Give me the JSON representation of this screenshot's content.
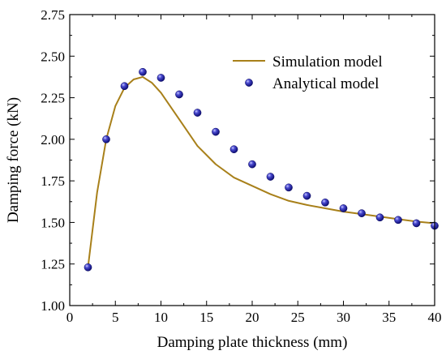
{
  "chart_data": {
    "type": "line",
    "title": "",
    "xlabel": "Damping plate thickness (mm)",
    "ylabel": "Damping force (kN)",
    "xlim": [
      0,
      40
    ],
    "ylim": [
      1.0,
      2.75
    ],
    "x_ticks": [
      0,
      5,
      10,
      15,
      20,
      25,
      30,
      35,
      40
    ],
    "y_ticks": [
      1.0,
      1.25,
      1.5,
      1.75,
      2.0,
      2.25,
      2.5,
      2.75
    ],
    "x_tick_labels": [
      "0",
      "5",
      "10",
      "15",
      "20",
      "25",
      "30",
      "35",
      "40"
    ],
    "y_tick_labels": [
      "1.00",
      "1.25",
      "1.50",
      "1.75",
      "2.00",
      "2.25",
      "2.50",
      "2.75"
    ],
    "grid": false,
    "legend_position": "top-right",
    "series": [
      {
        "name": "Simulation model",
        "style": "line",
        "color": "#A8801A",
        "x": [
          2,
          3,
          4,
          5,
          6,
          7,
          8,
          9,
          10,
          12,
          14,
          16,
          18,
          20,
          22,
          24,
          26,
          28,
          30,
          32,
          34,
          36,
          38,
          40
        ],
        "y": [
          1.23,
          1.68,
          2.0,
          2.2,
          2.31,
          2.36,
          2.375,
          2.34,
          2.28,
          2.12,
          1.96,
          1.85,
          1.77,
          1.72,
          1.67,
          1.63,
          1.605,
          1.585,
          1.565,
          1.55,
          1.535,
          1.52,
          1.505,
          1.495
        ]
      },
      {
        "name": "Analytical model",
        "style": "scatter",
        "color": "#1F1FA8",
        "x": [
          2,
          4,
          6,
          8,
          10,
          12,
          14,
          16,
          18,
          20,
          22,
          24,
          26,
          28,
          30,
          32,
          34,
          36,
          38,
          40
        ],
        "y": [
          1.23,
          2.0,
          2.32,
          2.405,
          2.37,
          2.27,
          2.16,
          2.045,
          1.94,
          1.85,
          1.775,
          1.71,
          1.66,
          1.62,
          1.585,
          1.555,
          1.53,
          1.515,
          1.495,
          1.48
        ]
      }
    ]
  }
}
